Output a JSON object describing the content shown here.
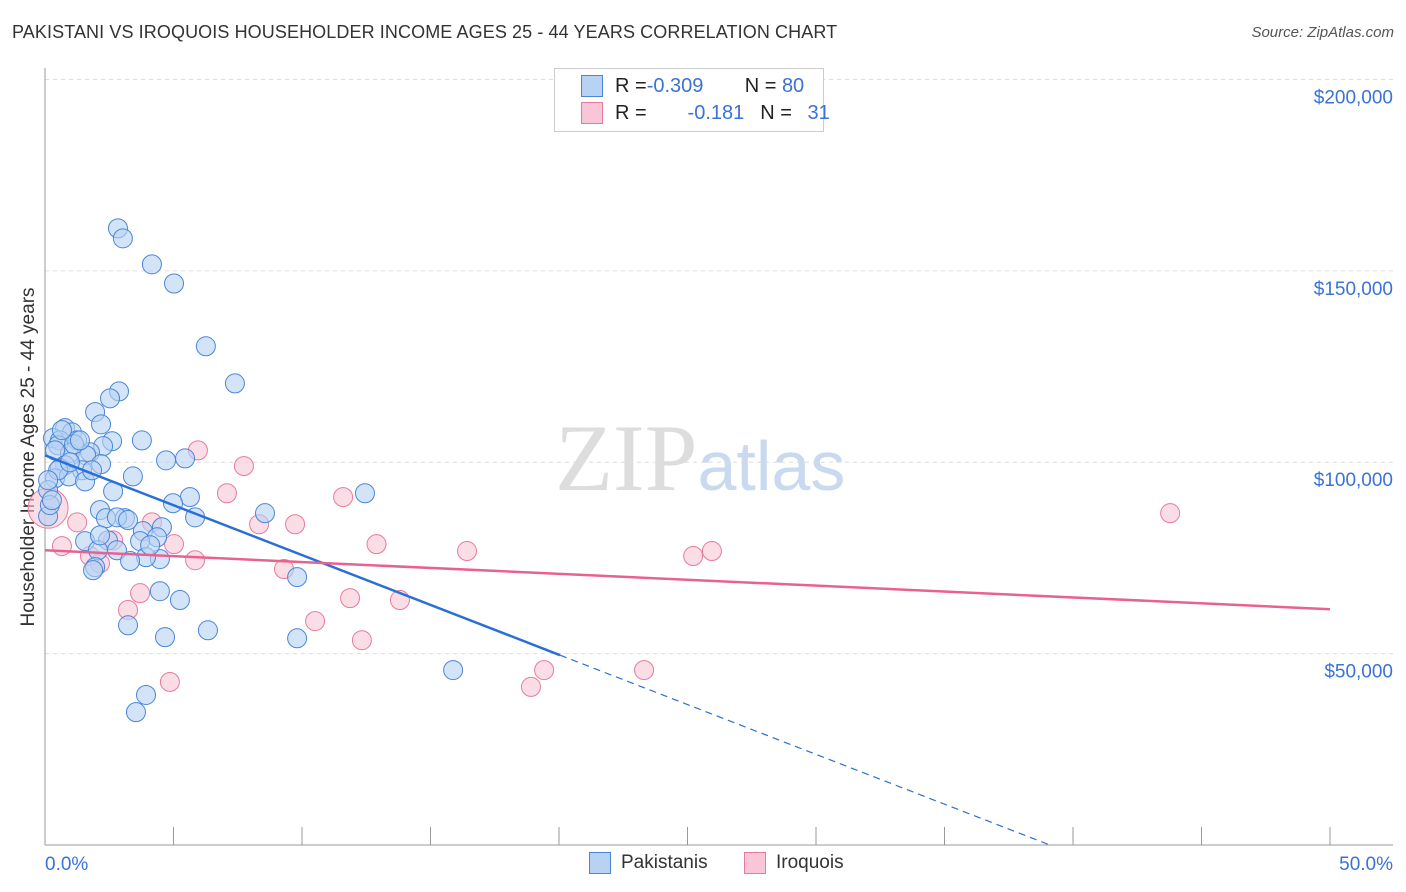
{
  "title": "PAKISTANI VS IROQUOIS HOUSEHOLDER INCOME AGES 25 - 44 YEARS CORRELATION CHART",
  "source": "Source: ZipAtlas.com",
  "watermark": "ZIPatlas",
  "colors": {
    "blue": "#4a86d8",
    "blue_fill": "#b8d2f3",
    "blue_line": "#2a6fd6",
    "pink": "#e87aa0",
    "pink_fill": "#f8c6d6",
    "pink_line": "#e8628f",
    "axis_text": "#3a72d8"
  },
  "legend": {
    "rows": [
      {
        "r_label": "R = ",
        "r": "-0.309",
        "n_label": "N = ",
        "n": "80"
      },
      {
        "r_label": "R = ",
        "r": "-0.181",
        "n_label": "N = ",
        "n": "31"
      }
    ]
  },
  "chart_data": {
    "type": "scatter",
    "title": "PAKISTANI VS IROQUOIS HOUSEHOLDER INCOME AGES 25 - 44 YEARS CORRELATION CHART",
    "xlabel": "",
    "ylabel": "Householder Income Ages 25 - 44 years",
    "xlim": [
      0,
      50
    ],
    "ylim": [
      0,
      203000
    ],
    "x_tick_labels": [
      "0.0%",
      "50.0%"
    ],
    "y_ticks": [
      50000,
      100000,
      150000,
      200000
    ],
    "y_tick_labels": [
      "$50,000",
      "$100,000",
      "$150,000",
      "$200,000"
    ],
    "legend_position": "bottom",
    "series": [
      {
        "name": "Pakistanis",
        "points": [
          [
            2.84,
            161100
          ],
          [
            3.03,
            158500
          ],
          [
            4.16,
            151700
          ],
          [
            5.02,
            146700
          ],
          [
            6.26,
            130300
          ],
          [
            7.39,
            120600
          ],
          [
            2.88,
            118500
          ],
          [
            2.53,
            116700
          ],
          [
            1.95,
            113100
          ],
          [
            2.18,
            109900
          ],
          [
            0.78,
            108900
          ],
          [
            1.05,
            107800
          ],
          [
            0.31,
            106300
          ],
          [
            0.58,
            105700
          ],
          [
            1.25,
            105700
          ],
          [
            2.61,
            105500
          ],
          [
            3.77,
            105700
          ],
          [
            0.51,
            104400
          ],
          [
            2.26,
            104200
          ],
          [
            1.75,
            102600
          ],
          [
            0.97,
            102400
          ],
          [
            1.6,
            101800
          ],
          [
            0.39,
            103100
          ],
          [
            0.78,
            99200
          ],
          [
            1.44,
            97900
          ],
          [
            0.58,
            98400
          ],
          [
            2.18,
            99500
          ],
          [
            5.45,
            101000
          ],
          [
            4.71,
            100500
          ],
          [
            0.39,
            95800
          ],
          [
            0.93,
            96300
          ],
          [
            1.56,
            95000
          ],
          [
            3.42,
            96300
          ],
          [
            2.65,
            92400
          ],
          [
            5.64,
            90900
          ],
          [
            4.98,
            89300
          ],
          [
            12.45,
            91900
          ],
          [
            8.56,
            86700
          ],
          [
            2.14,
            87500
          ],
          [
            2.37,
            85400
          ],
          [
            3.11,
            85400
          ],
          [
            2.8,
            85600
          ],
          [
            5.84,
            85600
          ],
          [
            4.55,
            83000
          ],
          [
            3.81,
            82000
          ],
          [
            4.36,
            80400
          ],
          [
            1.56,
            79400
          ],
          [
            2.45,
            79600
          ],
          [
            3.7,
            79400
          ],
          [
            2.06,
            77000
          ],
          [
            2.8,
            77000
          ],
          [
            4.47,
            74700
          ],
          [
            3.93,
            75200
          ],
          [
            3.31,
            74200
          ],
          [
            1.95,
            72600
          ],
          [
            1.87,
            71800
          ],
          [
            9.81,
            70000
          ],
          [
            4.47,
            66300
          ],
          [
            5.25,
            64000
          ],
          [
            3.23,
            57400
          ],
          [
            6.34,
            56100
          ],
          [
            4.67,
            54300
          ],
          [
            9.81,
            54000
          ],
          [
            15.88,
            45700
          ],
          [
            3.93,
            39200
          ],
          [
            3.54,
            34700
          ],
          [
            0.12,
            92700
          ],
          [
            0.12,
            85900
          ],
          [
            0.19,
            88800
          ],
          [
            1.13,
            104700
          ],
          [
            0.66,
            108400
          ],
          [
            0.51,
            97900
          ],
          [
            1.83,
            97900
          ],
          [
            1.36,
            105700
          ],
          [
            0.97,
            100000
          ],
          [
            0.12,
            95300
          ],
          [
            0.27,
            90100
          ],
          [
            2.14,
            80900
          ],
          [
            3.23,
            84900
          ],
          [
            4.09,
            78300
          ]
        ],
        "trend": {
          "x": [
            0,
            20.04
          ],
          "y": [
            101800,
            49600
          ],
          "dashed_to": [
            39.1,
            0
          ]
        }
      },
      {
        "name": "Iroquois",
        "points": [
          [
            5.95,
            103100
          ],
          [
            7.74,
            99000
          ],
          [
            7.08,
            91900
          ],
          [
            11.6,
            90900
          ],
          [
            43.78,
            86700
          ],
          [
            0.12,
            88000
          ],
          [
            1.25,
            84300
          ],
          [
            4.16,
            84300
          ],
          [
            8.33,
            83800
          ],
          [
            9.73,
            83800
          ],
          [
            2.65,
            79600
          ],
          [
            5.02,
            78600
          ],
          [
            12.9,
            78600
          ],
          [
            0.66,
            78100
          ],
          [
            16.42,
            76800
          ],
          [
            25.95,
            76800
          ],
          [
            25.22,
            75500
          ],
          [
            1.75,
            75500
          ],
          [
            5.84,
            74400
          ],
          [
            2.14,
            73600
          ],
          [
            9.3,
            72100
          ],
          [
            3.7,
            65800
          ],
          [
            11.87,
            64500
          ],
          [
            13.81,
            64000
          ],
          [
            3.23,
            61400
          ],
          [
            10.51,
            58500
          ],
          [
            12.33,
            53500
          ],
          [
            19.42,
            45700
          ],
          [
            23.31,
            45700
          ],
          [
            18.91,
            41300
          ],
          [
            4.86,
            42600
          ]
        ],
        "trend": {
          "x": [
            0,
            50
          ],
          "y": [
            77000,
            61600
          ]
        }
      }
    ]
  }
}
